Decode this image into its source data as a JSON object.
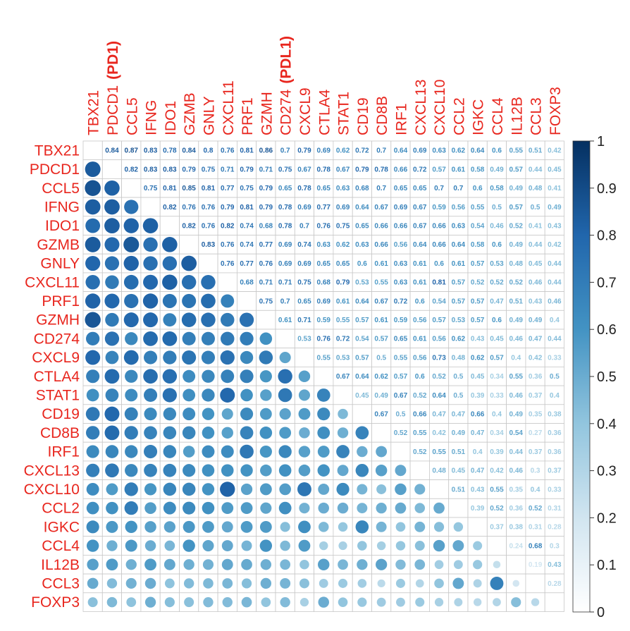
{
  "chart_data": {
    "type": "heatmap",
    "title": "",
    "variables": [
      "TBX21",
      "PDCD1",
      "CCL5",
      "IFNG",
      "IDO1",
      "GZMB",
      "GNLY",
      "CXCL11",
      "PRF1",
      "GZMH",
      "CD274",
      "CXCL9",
      "CTLA4",
      "STAT1",
      "CD19",
      "CD8B",
      "IRF1",
      "CXCL13",
      "CXCL10",
      "CCL2",
      "IGKC",
      "CCL4",
      "IL12B",
      "CCL3",
      "FOXP3"
    ],
    "column_annotations": {
      "1": "(PD1)",
      "10": "(PDL1)"
    },
    "upper_values": [
      [
        0.84,
        0.87,
        0.83,
        0.78,
        0.84,
        0.8,
        0.76,
        0.81,
        0.86,
        0.7,
        0.79,
        0.69,
        0.62,
        0.72,
        0.7,
        0.64,
        0.69,
        0.63,
        0.62,
        0.64,
        0.6,
        0.55,
        0.51,
        0.42
      ],
      [
        0.82,
        0.83,
        0.83,
        0.79,
        0.75,
        0.71,
        0.79,
        0.71,
        0.75,
        0.67,
        0.78,
        0.67,
        0.79,
        0.78,
        0.66,
        0.72,
        0.57,
        0.61,
        0.58,
        0.49,
        0.57,
        0.44,
        0.45
      ],
      [
        0.75,
        0.81,
        0.85,
        0.81,
        0.77,
        0.75,
        0.79,
        0.65,
        0.78,
        0.65,
        0.63,
        0.68,
        0.7,
        0.65,
        0.65,
        0.7,
        0.7,
        0.6,
        0.58,
        0.49,
        0.48,
        0.41
      ],
      [
        0.82,
        0.76,
        0.76,
        0.79,
        0.81,
        0.79,
        0.78,
        0.69,
        0.77,
        0.69,
        0.64,
        0.67,
        0.69,
        0.67,
        0.59,
        0.56,
        0.55,
        0.5,
        0.57,
        0.5,
        0.49
      ],
      [
        0.82,
        0.76,
        0.82,
        0.74,
        0.68,
        0.78,
        0.7,
        0.76,
        0.75,
        0.65,
        0.66,
        0.66,
        0.67,
        0.66,
        0.63,
        0.54,
        0.46,
        0.52,
        0.41,
        0.43
      ],
      [
        0.83,
        0.76,
        0.74,
        0.77,
        0.69,
        0.74,
        0.63,
        0.62,
        0.63,
        0.66,
        0.56,
        0.64,
        0.66,
        0.64,
        0.58,
        0.6,
        0.49,
        0.44,
        0.42
      ],
      [
        0.76,
        0.77,
        0.76,
        0.69,
        0.69,
        0.65,
        0.65,
        0.6,
        0.61,
        0.63,
        0.61,
        0.6,
        0.61,
        0.57,
        0.53,
        0.48,
        0.45,
        0.44
      ],
      [
        0.68,
        0.71,
        0.71,
        0.75,
        0.68,
        0.79,
        0.53,
        0.55,
        0.63,
        0.61,
        0.81,
        0.57,
        0.52,
        0.52,
        0.52,
        0.46,
        0.44
      ],
      [
        0.75,
        0.7,
        0.65,
        0.69,
        0.61,
        0.64,
        0.67,
        0.72,
        0.6,
        0.54,
        0.57,
        0.57,
        0.47,
        0.51,
        0.43,
        0.46
      ],
      [
        0.61,
        0.71,
        0.59,
        0.55,
        0.57,
        0.61,
        0.59,
        0.56,
        0.57,
        0.53,
        0.57,
        0.6,
        0.49,
        0.49,
        0.4
      ],
      [
        0.53,
        0.76,
        0.72,
        0.54,
        0.57,
        0.65,
        0.61,
        0.56,
        0.62,
        0.43,
        0.45,
        0.46,
        0.47,
        0.44
      ],
      [
        0.55,
        0.53,
        0.57,
        0.5,
        0.55,
        0.56,
        0.73,
        0.48,
        0.62,
        0.57,
        0.4,
        0.42,
        0.33
      ],
      [
        0.67,
        0.64,
        0.62,
        0.57,
        0.6,
        0.52,
        0.5,
        0.45,
        0.34,
        0.55,
        0.36,
        0.5
      ],
      [
        0.45,
        0.49,
        0.67,
        0.52,
        0.64,
        0.5,
        0.39,
        0.33,
        0.46,
        0.37,
        0.4
      ],
      [
        0.67,
        0.5,
        0.66,
        0.47,
        0.47,
        0.66,
        0.4,
        0.49,
        0.35,
        0.38
      ],
      [
        0.52,
        0.55,
        0.42,
        0.49,
        0.47,
        0.34,
        0.54,
        0.27,
        0.36
      ],
      [
        0.52,
        0.55,
        0.51,
        0.4,
        0.39,
        0.44,
        0.37,
        0.36
      ],
      [
        0.48,
        0.45,
        0.47,
        0.42,
        0.46,
        0.3,
        0.37
      ],
      [
        0.51,
        0.43,
        0.55,
        0.35,
        0.4,
        0.33
      ],
      [
        0.39,
        0.52,
        0.36,
        0.52,
        0.31
      ],
      [
        0.37,
        0.38,
        0.31,
        0.28
      ],
      [
        0.24,
        0.68,
        0.3
      ],
      [
        0.19,
        0.43
      ],
      [
        0.28
      ]
    ],
    "colorbar": {
      "min": 0,
      "max": 1,
      "ticks": [
        "0",
        "0.1",
        "0.2",
        "0.3",
        "0.4",
        "0.5",
        "0.6",
        "0.7",
        "0.8",
        "0.9",
        "1"
      ],
      "low_color": "#ffffff",
      "high_color": "#053061"
    }
  }
}
